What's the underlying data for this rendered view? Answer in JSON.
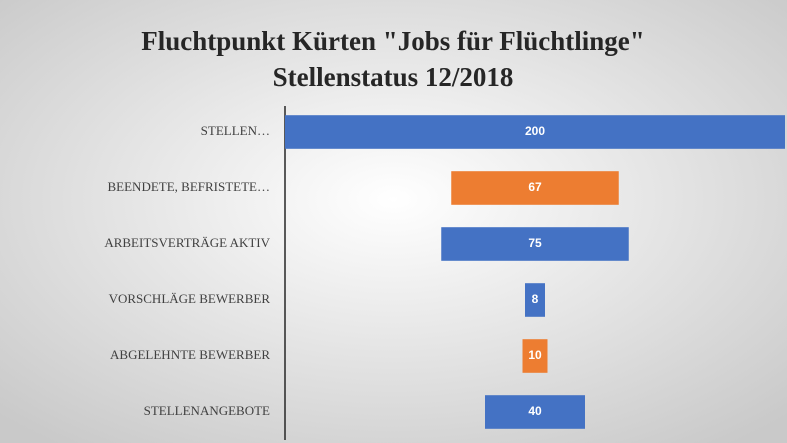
{
  "chart_data": {
    "type": "funnel",
    "title": "Fluchtpunkt Kürten \"Jobs für Flüchtlinge\"",
    "subtitle": "Stellenstatus 12/2018",
    "categories": [
      "STELLEN…",
      "BEENDETE, BEFRISTETE…",
      "ARBEITSVERTRÄGE AKTIV",
      "VORSCHLÄGE BEWERBER",
      "ABGELEHNTE BEWERBER",
      "STELLENANGEBOTE"
    ],
    "values": [
      200,
      67,
      75,
      8,
      10,
      40
    ],
    "colors": [
      "#4472c4",
      "#ed7d31",
      "#4472c4",
      "#4472c4",
      "#ed7d31",
      "#4472c4"
    ]
  }
}
